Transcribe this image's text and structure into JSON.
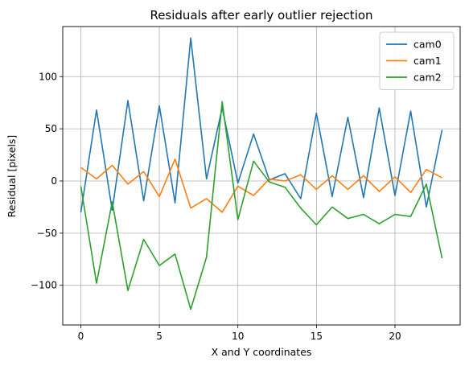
{
  "chart_data": {
    "type": "line",
    "title": "Residuals after early outlier rejection",
    "xlabel": "X and Y coordinates",
    "ylabel": "Residual [pixels]",
    "xlim": [
      -1.15,
      24.15
    ],
    "ylim": [
      -138,
      148
    ],
    "xticks": [
      0,
      5,
      10,
      15,
      20
    ],
    "yticks": [
      -100,
      -50,
      0,
      50,
      100
    ],
    "grid": true,
    "legend_position": "top-right",
    "x": [
      0,
      1,
      2,
      3,
      4,
      5,
      6,
      7,
      8,
      9,
      10,
      11,
      12,
      13,
      14,
      15,
      16,
      17,
      18,
      19,
      20,
      21,
      22,
      23
    ],
    "series": [
      {
        "name": "cam0",
        "color": "#1f77b4",
        "values": [
          -30,
          68,
          -28,
          77,
          -19,
          72,
          -21,
          137,
          2,
          70,
          -2,
          45,
          1,
          7,
          -17,
          65,
          -15,
          61,
          -16,
          70,
          -14,
          67,
          -25,
          49
        ]
      },
      {
        "name": "cam1",
        "color": "#ff7f0e",
        "values": [
          13,
          2,
          15,
          -3,
          9,
          -15,
          21,
          -26,
          -17,
          -30,
          -5,
          -14,
          2,
          0,
          6,
          -8,
          5,
          -8,
          5,
          -10,
          4,
          -11,
          11,
          3
        ]
      },
      {
        "name": "cam2",
        "color": "#2ca02c",
        "values": [
          -5,
          -98,
          -20,
          -105,
          -56,
          -81,
          -70,
          -123,
          -73,
          76,
          -37,
          19,
          -1,
          -6,
          -26,
          -42,
          -25,
          -36,
          -32,
          -41,
          -32,
          -34,
          -3,
          -74
        ]
      }
    ]
  }
}
